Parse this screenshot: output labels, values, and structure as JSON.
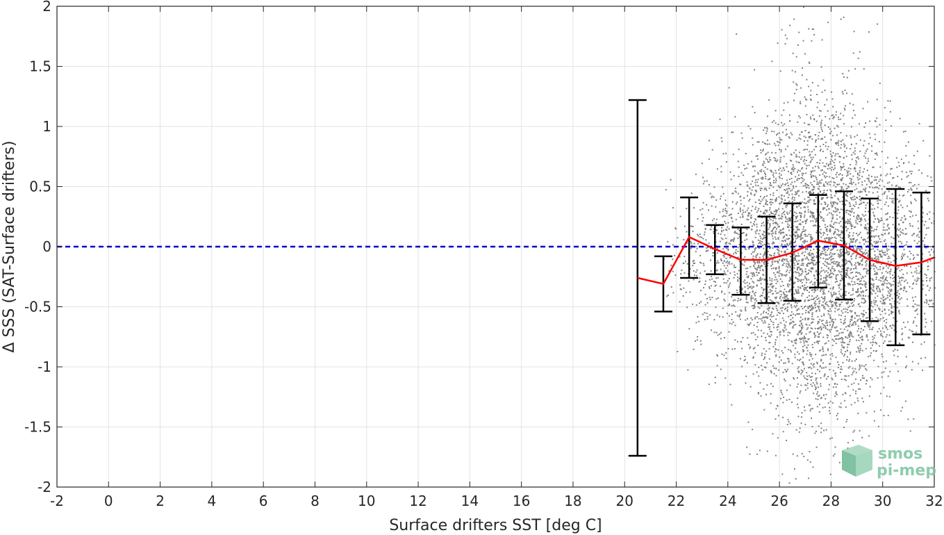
{
  "chart_data": {
    "type": "scatter",
    "title": "",
    "xlabel": "Surface drifters SST [deg C]",
    "ylabel": "Δ SSS (SAT-Surface drifters)",
    "xlim": [
      -2,
      32
    ],
    "ylim": [
      -2,
      2
    ],
    "xticks": [
      -2,
      0,
      2,
      4,
      6,
      8,
      10,
      12,
      14,
      16,
      18,
      20,
      22,
      24,
      26,
      28,
      30,
      32
    ],
    "xtick_labels": [
      "-2",
      "0",
      "2",
      "4",
      "6",
      "8",
      "10",
      "12",
      "14",
      "16",
      "18",
      "20",
      "22",
      "24",
      "26",
      "28",
      "30",
      "32"
    ],
    "yticks": [
      -2,
      -1.5,
      -1,
      -0.5,
      0,
      0.5,
      1,
      1.5,
      2
    ],
    "ytick_labels": [
      "-2",
      "-1.5",
      "-1",
      "-0.5",
      "0",
      "0.5",
      "1",
      "1.5",
      "2"
    ],
    "grid": true,
    "reference_line": {
      "y": 0,
      "color": "#0000cc",
      "style": "dashed"
    },
    "scatter_cloud": {
      "color": "#808080",
      "x_range": [
        21.5,
        32
      ],
      "y_range": [
        -2,
        2
      ],
      "densest_x": [
        27,
        28
      ],
      "densest_y": [
        -0.5,
        0.5
      ]
    },
    "mean_series": {
      "color": "#ff0000",
      "x": [
        20.5,
        21.5,
        22.5,
        23.5,
        24.5,
        25.5,
        26.5,
        27.5,
        28.5,
        29.5,
        30.5,
        31.5,
        32
      ],
      "y": [
        -0.26,
        -0.31,
        0.08,
        -0.02,
        -0.11,
        -0.11,
        -0.05,
        0.05,
        0.01,
        -0.11,
        -0.16,
        -0.13,
        -0.09
      ]
    },
    "error_bars": {
      "color": "#000000",
      "x": [
        20.5,
        21.5,
        22.5,
        23.5,
        24.5,
        25.5,
        26.5,
        27.5,
        28.5,
        29.5,
        30.5,
        31.5
      ],
      "upper": [
        1.22,
        -0.08,
        0.41,
        0.18,
        0.16,
        0.25,
        0.36,
        0.43,
        0.46,
        0.4,
        0.48,
        0.45
      ],
      "lower": [
        -1.74,
        -0.54,
        -0.26,
        -0.23,
        -0.4,
        -0.47,
        -0.45,
        -0.34,
        -0.44,
        -0.62,
        -0.82,
        -0.73
      ]
    }
  },
  "logo": {
    "line1": "smos",
    "line2": "pi-mep",
    "color": "#7cc4a0"
  }
}
